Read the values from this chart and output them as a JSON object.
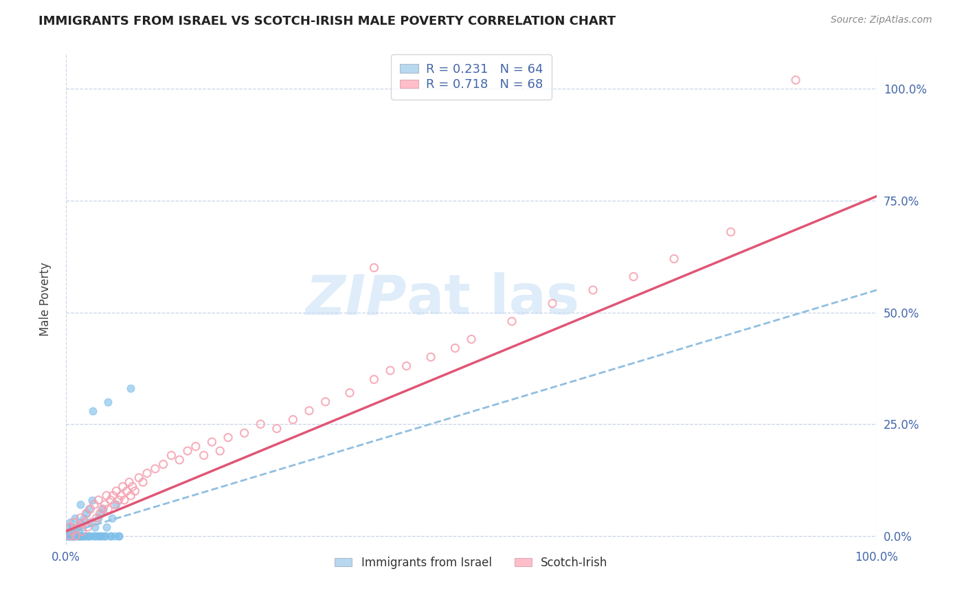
{
  "title": "IMMIGRANTS FROM ISRAEL VS SCOTCH-IRISH MALE POVERTY CORRELATION CHART",
  "source": "Source: ZipAtlas.com",
  "ylabel": "Male Poverty",
  "xlim": [
    0,
    1.0
  ],
  "ylim": [
    -0.02,
    1.08
  ],
  "x_tick_labels": [
    "0.0%",
    "100.0%"
  ],
  "x_tick_positions": [
    0.0,
    1.0
  ],
  "y_tick_labels": [
    "0.0%",
    "25.0%",
    "50.0%",
    "75.0%",
    "100.0%"
  ],
  "y_tick_positions": [
    0.0,
    0.25,
    0.5,
    0.75,
    1.0
  ],
  "israel_color": "#7bbde8",
  "scotch_color": "#f5a0b0",
  "israel_line_color": "#90bfe0",
  "scotch_line_color": "#e05575",
  "legend_israel_color": "#b8d8f0",
  "legend_scotch_color": "#ffbec8",
  "R_israel": 0.231,
  "N_israel": 64,
  "R_scotch": 0.718,
  "N_scotch": 68,
  "background_color": "#ffffff",
  "grid_color": "#c8d4e8",
  "tick_color": "#4466aa",
  "title_color": "#222222",
  "ylabel_color": "#444444",
  "source_color": "#888888",
  "israel_scatter_x": [
    0.001,
    0.002,
    0.003,
    0.003,
    0.004,
    0.005,
    0.005,
    0.006,
    0.007,
    0.008,
    0.008,
    0.009,
    0.01,
    0.01,
    0.011,
    0.012,
    0.013,
    0.015,
    0.015,
    0.016,
    0.017,
    0.018,
    0.019,
    0.02,
    0.02,
    0.022,
    0.023,
    0.025,
    0.027,
    0.028,
    0.03,
    0.03,
    0.032,
    0.033,
    0.035,
    0.036,
    0.038,
    0.04,
    0.042,
    0.043,
    0.045,
    0.046,
    0.048,
    0.05,
    0.052,
    0.055,
    0.057,
    0.06,
    0.062,
    0.065,
    0.002,
    0.004,
    0.007,
    0.009,
    0.014,
    0.019,
    0.024,
    0.029,
    0.035,
    0.041,
    0.048,
    0.055,
    0.065,
    0.08
  ],
  "israel_scatter_y": [
    0.0,
    0.02,
    0.0,
    0.01,
    0.0,
    0.0,
    0.03,
    0.0,
    0.01,
    0.0,
    0.02,
    0.0,
    0.0,
    0.01,
    0.04,
    0.0,
    0.02,
    0.0,
    0.01,
    0.0,
    0.03,
    0.07,
    0.0,
    0.0,
    0.02,
    0.04,
    0.0,
    0.05,
    0.0,
    0.06,
    0.0,
    0.03,
    0.08,
    0.28,
    0.0,
    0.02,
    0.0,
    0.04,
    0.0,
    0.05,
    0.0,
    0.06,
    0.0,
    0.02,
    0.3,
    0.0,
    0.04,
    0.0,
    0.07,
    0.0,
    0.0,
    0.0,
    0.0,
    0.0,
    0.0,
    0.0,
    0.0,
    0.0,
    0.0,
    0.0,
    0.0,
    0.0,
    0.0,
    0.33
  ],
  "scotch_scatter_x": [
    0.005,
    0.008,
    0.01,
    0.012,
    0.015,
    0.018,
    0.02,
    0.022,
    0.025,
    0.027,
    0.03,
    0.032,
    0.035,
    0.038,
    0.04,
    0.042,
    0.045,
    0.048,
    0.05,
    0.052,
    0.055,
    0.058,
    0.06,
    0.062,
    0.065,
    0.068,
    0.07,
    0.072,
    0.075,
    0.078,
    0.08,
    0.082,
    0.085,
    0.09,
    0.095,
    0.1,
    0.11,
    0.12,
    0.13,
    0.14,
    0.15,
    0.16,
    0.17,
    0.18,
    0.19,
    0.2,
    0.22,
    0.24,
    0.26,
    0.28,
    0.3,
    0.32,
    0.35,
    0.38,
    0.4,
    0.42,
    0.45,
    0.48,
    0.5,
    0.38,
    0.55,
    0.6,
    0.65,
    0.7,
    0.75,
    0.82,
    0.9,
    0.005
  ],
  "scotch_scatter_y": [
    0.02,
    0.01,
    0.03,
    0.0,
    0.02,
    0.04,
    0.01,
    0.03,
    0.05,
    0.02,
    0.06,
    0.03,
    0.07,
    0.04,
    0.08,
    0.05,
    0.06,
    0.07,
    0.09,
    0.06,
    0.08,
    0.09,
    0.07,
    0.1,
    0.08,
    0.09,
    0.11,
    0.08,
    0.1,
    0.12,
    0.09,
    0.11,
    0.1,
    0.13,
    0.12,
    0.14,
    0.15,
    0.16,
    0.18,
    0.17,
    0.19,
    0.2,
    0.18,
    0.21,
    0.19,
    0.22,
    0.23,
    0.25,
    0.24,
    0.26,
    0.28,
    0.3,
    0.32,
    0.35,
    0.37,
    0.38,
    0.4,
    0.42,
    0.44,
    0.6,
    0.48,
    0.52,
    0.55,
    0.58,
    0.62,
    0.68,
    1.02,
    0.0
  ],
  "scotch_line_x0": 0.0,
  "scotch_line_x1": 1.0,
  "scotch_line_y0": 0.01,
  "scotch_line_y1": 0.76,
  "israel_line_x0": 0.0,
  "israel_line_x1": 1.0,
  "israel_line_y0": 0.005,
  "israel_line_y1": 0.55
}
